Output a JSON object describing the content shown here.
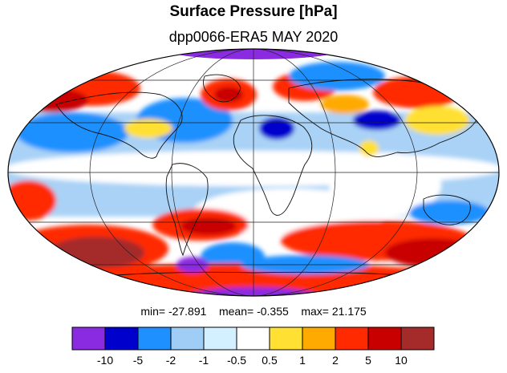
{
  "title": "Surface Pressure [hPa]",
  "subtitle": "dpp0066-ERA5  MAY 2020",
  "stats": {
    "min_label": "min=",
    "min_value": "-27.891",
    "mean_label": "mean=",
    "mean_value": "-0.355",
    "max_label": "max=",
    "max_value": "21.175"
  },
  "colorbar": {
    "colors": [
      "#8a2be2",
      "#0000cd",
      "#1e90ff",
      "#a0cdf5",
      "#d2f0ff",
      "#ffffff",
      "#ffe033",
      "#ffaa00",
      "#ff2a00",
      "#c80000",
      "#a52a2a"
    ],
    "tick_labels": [
      "-10",
      "-5",
      "-2",
      "-1",
      "-0.5",
      "0.5",
      "1",
      "2",
      "5",
      "10"
    ]
  },
  "map": {
    "projection": "mollweide",
    "background": "#ffffff"
  }
}
